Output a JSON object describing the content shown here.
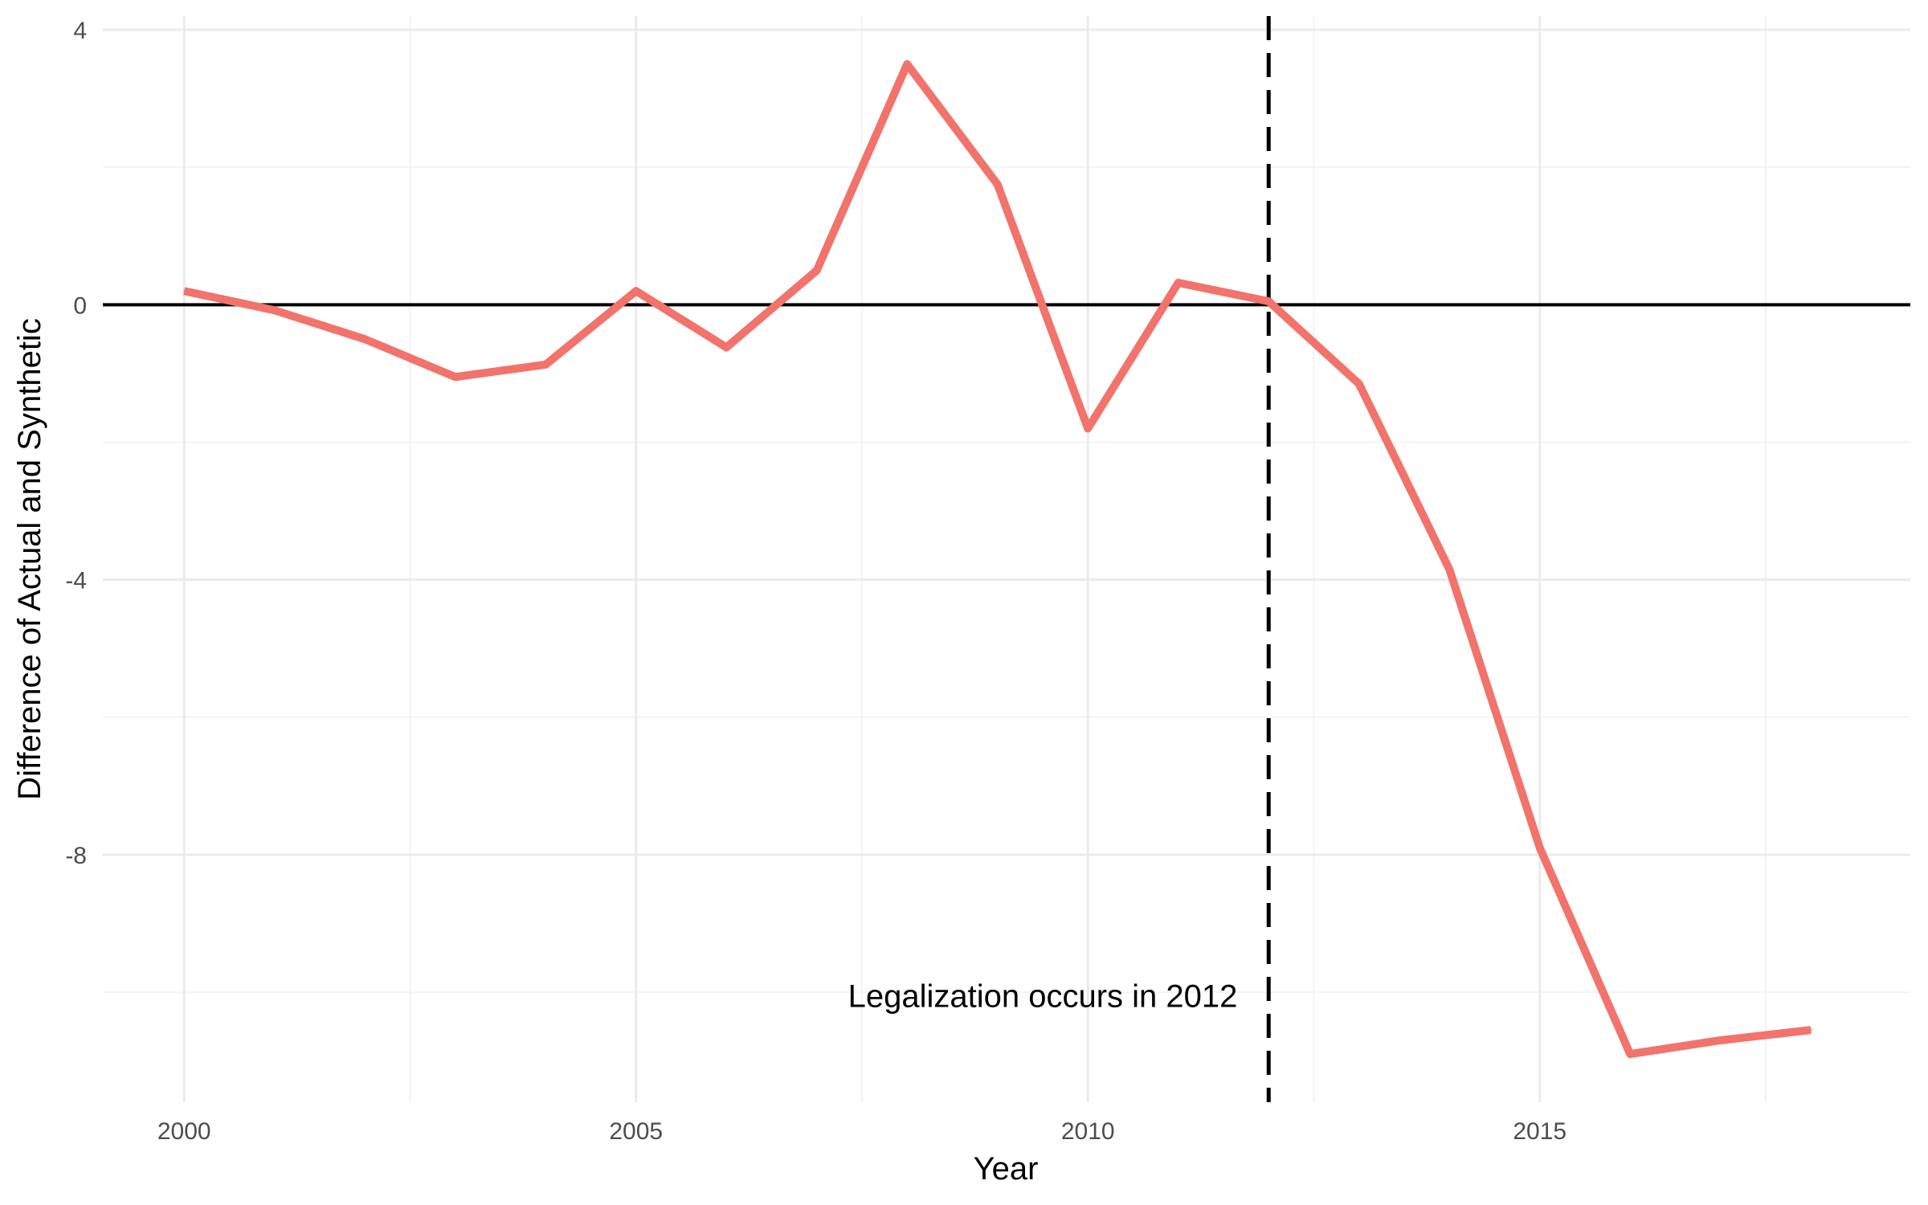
{
  "chart_data": {
    "type": "line",
    "title": "",
    "xlabel": "Year",
    "ylabel": "Difference of Actual and Synthetic",
    "xlim": [
      1999.1,
      2019.1
    ],
    "ylim": [
      -11.6,
      4.2
    ],
    "x_ticks": [
      2000,
      2005,
      2010,
      2015
    ],
    "x_tick_labels": [
      "2000",
      "2005",
      "2010",
      "2015"
    ],
    "x_minor_ticks": [
      2002.5,
      2007.5,
      2012.5,
      2017.5
    ],
    "y_ticks": [
      4,
      0,
      -4,
      -8
    ],
    "y_tick_labels": [
      "4",
      "0",
      "-4",
      "-8"
    ],
    "y_minor_ticks": [
      2,
      -2,
      -6,
      -10
    ],
    "grid": true,
    "series": [
      {
        "color": "#F2736B",
        "x": [
          2000,
          2001,
          2002,
          2003,
          2004,
          2005,
          2006,
          2007,
          2008,
          2009,
          2010,
          2011,
          2012,
          2013,
          2014,
          2015,
          2016,
          2017,
          2018
        ],
        "y": [
          0.2,
          -0.08,
          -0.5,
          -1.05,
          -0.87,
          0.2,
          -0.62,
          0.5,
          3.5,
          1.75,
          -1.8,
          0.32,
          0.05,
          -1.15,
          -3.85,
          -7.9,
          -10.9,
          -10.7,
          -10.55
        ]
      }
    ],
    "reference_lines": {
      "horizontal": {
        "y": 0,
        "color": "#000000",
        "style": "solid"
      },
      "vertical": {
        "x": 2012,
        "color": "#000000",
        "style": "dashed"
      }
    },
    "annotations": [
      {
        "text": "Legalization occurs in 2012",
        "x": 2009.5,
        "y": -10.05
      }
    ]
  }
}
